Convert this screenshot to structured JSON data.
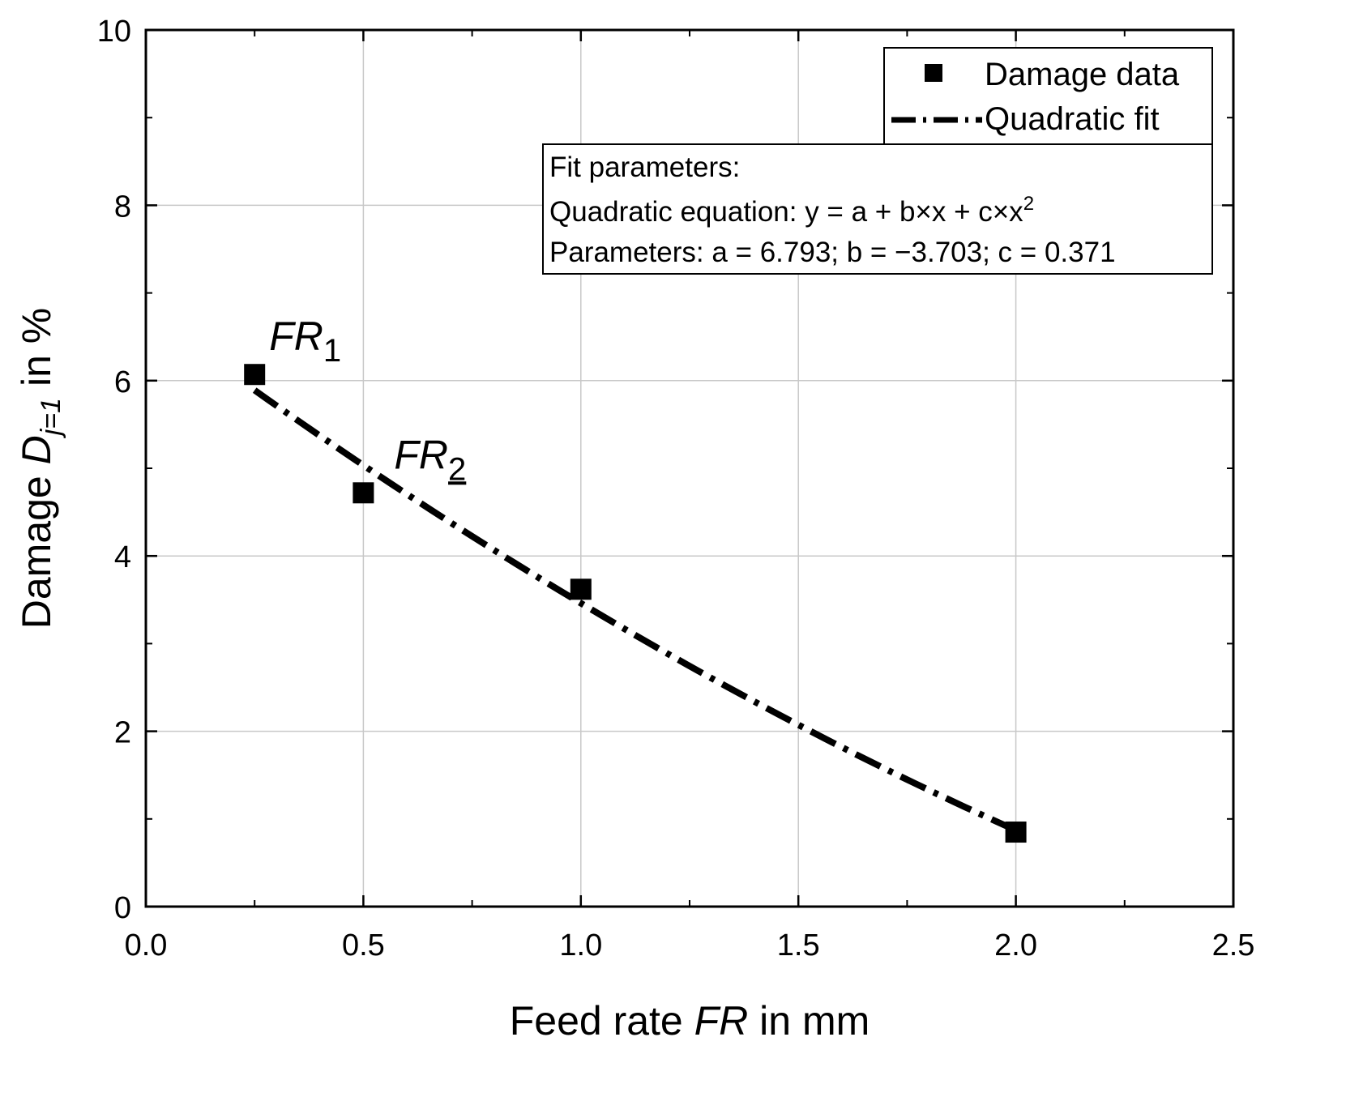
{
  "chart_data": {
    "type": "scatter",
    "xlabel": {
      "prefix": "Feed rate ",
      "italic": "FR",
      "suffix": " in mm"
    },
    "ylabel": {
      "prefix": "Damage ",
      "italic": "D",
      "sub": "j=1",
      "suffix": " in %"
    },
    "xlim": [
      0,
      2.5
    ],
    "ylim": [
      0,
      10
    ],
    "x_ticks": [
      "0.0",
      "0.5",
      "1.0",
      "1.5",
      "2.0",
      "2.5"
    ],
    "y_ticks": [
      "0",
      "2",
      "4",
      "6",
      "8",
      "10"
    ],
    "grid": true,
    "series": [
      {
        "name": "Damage data",
        "kind": "scatter",
        "marker": "square",
        "color": "#000000",
        "x": [
          0.25,
          0.5,
          1.0,
          2.0
        ],
        "y": [
          6.07,
          4.72,
          3.62,
          0.85
        ]
      },
      {
        "name": "Quadratic fit",
        "kind": "line",
        "style": "dash-dot",
        "color": "#000000",
        "x_range": [
          0.25,
          2.0
        ],
        "equation": {
          "a": 6.793,
          "b": -3.703,
          "c": 0.371
        }
      }
    ],
    "legend": {
      "position": "top-right",
      "entries": [
        "Damage data",
        "Quadratic fit"
      ]
    },
    "fit_box": {
      "title": "Fit parameters:",
      "equation_line": "Quadratic equation: y = a + b×x + c×x",
      "equation_sup": "2",
      "params_line": "Parameters: a = 6.793; b = −3.703; c = 0.371"
    },
    "annotations": [
      {
        "main": "FR",
        "sub": "1",
        "x": 0.25,
        "y": 6.07
      },
      {
        "main": "FR",
        "sub": "2",
        "x": 0.5,
        "y": 4.72
      }
    ]
  }
}
